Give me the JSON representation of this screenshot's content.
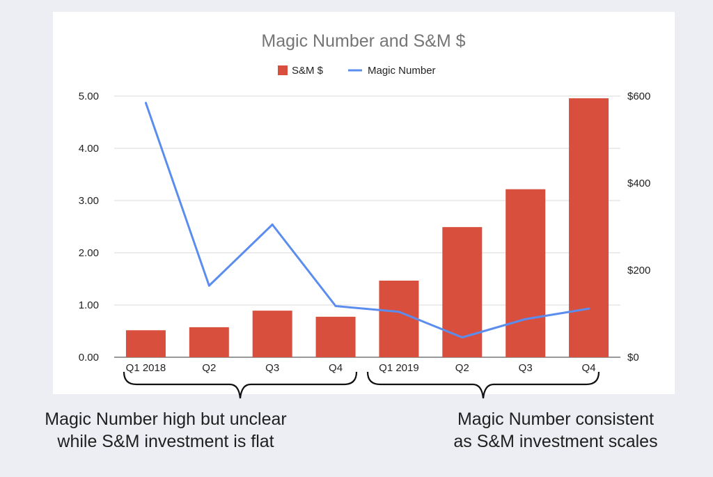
{
  "chart_data": {
    "type": "bar",
    "title": "Magic Number and S&M $",
    "categories": [
      "Q1 2018",
      "Q2",
      "Q3",
      "Q4",
      "Q1 2019",
      "Q2",
      "Q3",
      "Q4"
    ],
    "series": [
      {
        "name": "S&M $",
        "type": "bar",
        "axis": "right",
        "color": "#d94f3d",
        "values": [
          62,
          69,
          107,
          93,
          176,
          299,
          386,
          595
        ]
      },
      {
        "name": "Magic Number",
        "type": "line",
        "axis": "left",
        "color": "#5b8def",
        "values": [
          4.87,
          1.37,
          2.54,
          0.98,
          0.87,
          0.38,
          0.73,
          0.93
        ]
      }
    ],
    "ylim_left": [
      0,
      5
    ],
    "ylim_right": [
      0,
      600
    ],
    "left_ticks": [
      "0.00",
      "1.00",
      "2.00",
      "3.00",
      "4.00",
      "5.00"
    ],
    "right_ticks": [
      "$0",
      "$200",
      "$400",
      "$600"
    ],
    "right_tick_values": [
      0,
      200,
      400,
      600
    ],
    "legend_placement": "top-center",
    "grid": true
  },
  "annotations": {
    "left": {
      "line1": "Magic Number high but unclear",
      "line2": "while S&M investment is flat"
    },
    "right": {
      "line1": "Magic Number consistent",
      "line2": "as S&M investment scales"
    }
  }
}
